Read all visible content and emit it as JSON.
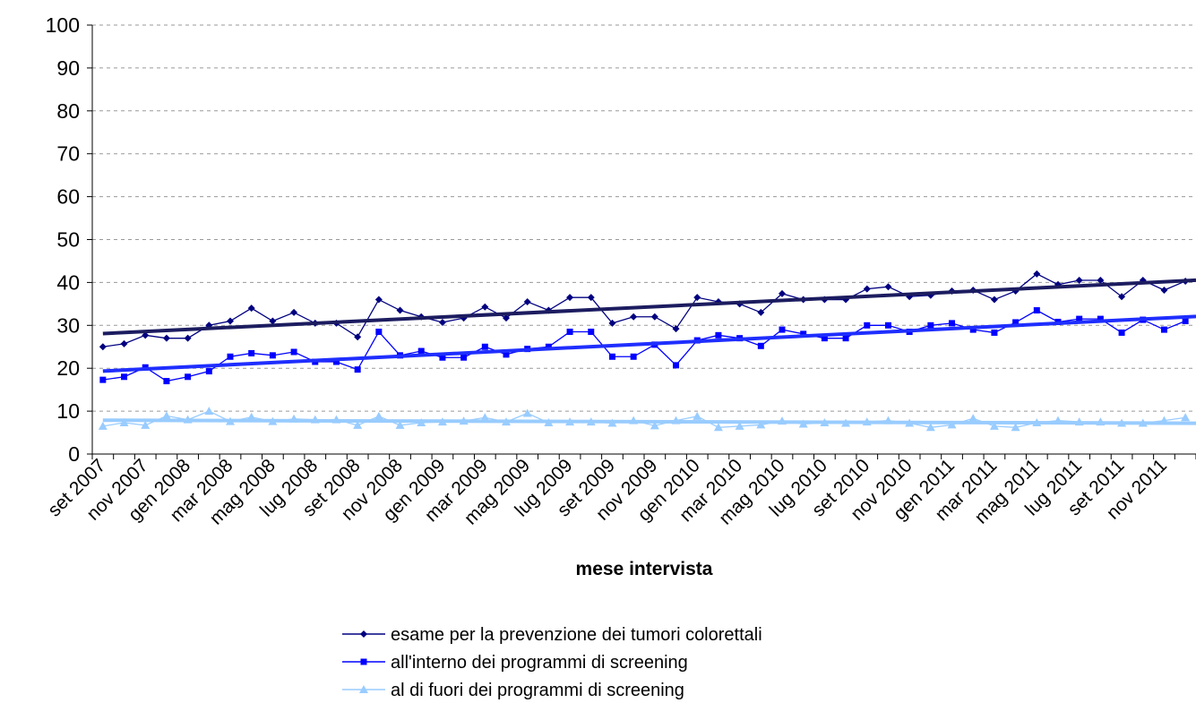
{
  "chart_data": {
    "type": "line",
    "x_label": "mese intervista",
    "categories": [
      "set 2007",
      null,
      "nov 2007",
      null,
      "gen 2008",
      null,
      "mar 2008",
      null,
      "mag 2008",
      null,
      "lug 2008",
      null,
      "set 2008",
      null,
      "nov 2008",
      null,
      "gen 2009",
      null,
      "mar 2009",
      null,
      "mag 2009",
      null,
      "lug 2009",
      null,
      "set 2009",
      null,
      "nov 2009",
      null,
      "gen 2010",
      null,
      "mar 2010",
      null,
      "mag 2010",
      null,
      "lug 2010",
      null,
      "set 2010",
      null,
      "nov 2010",
      null,
      "gen 2011",
      null,
      "mar 2011",
      null,
      "mag 2011",
      null,
      "lug 2011",
      null,
      "set 2011",
      null,
      "nov 2011",
      null
    ],
    "series": [
      {
        "name": "esame per la prevenzione dei tumori colorettali",
        "color": "#000080",
        "trend_color": "#1c1c60",
        "marker": "diamond",
        "values": [
          25,
          25.7,
          27.7,
          27,
          27,
          30,
          31,
          34,
          31,
          33,
          30.5,
          30.5,
          27.3,
          36,
          33.5,
          32,
          30.7,
          31.7,
          34.3,
          31.7,
          35.5,
          33.5,
          36.5,
          36.5,
          30.5,
          32,
          32,
          29.2,
          36.5,
          35.5,
          35,
          33,
          37.4,
          36,
          36,
          36,
          38.5,
          39,
          36.7,
          37,
          38,
          38.2,
          36,
          38,
          42,
          39.5,
          40.5,
          40.5,
          36.7,
          40.5,
          38.2,
          40.3
        ]
      },
      {
        "name": "all'interno dei programmi di screening",
        "color": "#0000ff",
        "trend_color": "#1f2eff",
        "marker": "square",
        "values": [
          17.3,
          18,
          20.2,
          17,
          18,
          19.3,
          22.7,
          23.5,
          23,
          23.8,
          21.5,
          21.5,
          19.7,
          28.5,
          23,
          24,
          22.5,
          22.5,
          25,
          23.2,
          24.5,
          25,
          28.5,
          28.5,
          22.7,
          22.7,
          25.5,
          20.7,
          26.5,
          27.7,
          27,
          25.2,
          29,
          28,
          27,
          27,
          30,
          30,
          28.5,
          30,
          30.5,
          29,
          28.3,
          30.7,
          33.5,
          30.8,
          31.5,
          31.5,
          28.3,
          31.3,
          29,
          31
        ]
      },
      {
        "name": "al di fuori dei programmi di screening",
        "color": "#99ccff",
        "trend_color": "#99ccff",
        "marker": "triangle",
        "values": [
          6.5,
          7.3,
          6.7,
          8.9,
          8,
          10,
          7.6,
          8.6,
          7.6,
          8.2,
          8,
          8,
          6.7,
          8.8,
          6.7,
          7.3,
          7.5,
          7.7,
          8.5,
          7.5,
          9.5,
          7.3,
          7.5,
          7.5,
          7.2,
          7.8,
          6.6,
          7.8,
          8.8,
          6.2,
          6.5,
          6.8,
          7.7,
          7,
          7.3,
          7.2,
          7.5,
          7.8,
          7.2,
          6.2,
          6.8,
          8.3,
          6.5,
          6.2,
          7.3,
          7.8,
          7.5,
          7.5,
          7.2,
          7.2,
          7.8,
          8.5
        ]
      }
    ],
    "trendline": true,
    "grid": true,
    "ylim": [
      0,
      100
    ],
    "yticks": [
      0,
      10,
      20,
      30,
      40,
      50,
      60,
      70,
      80,
      90,
      100
    ]
  }
}
